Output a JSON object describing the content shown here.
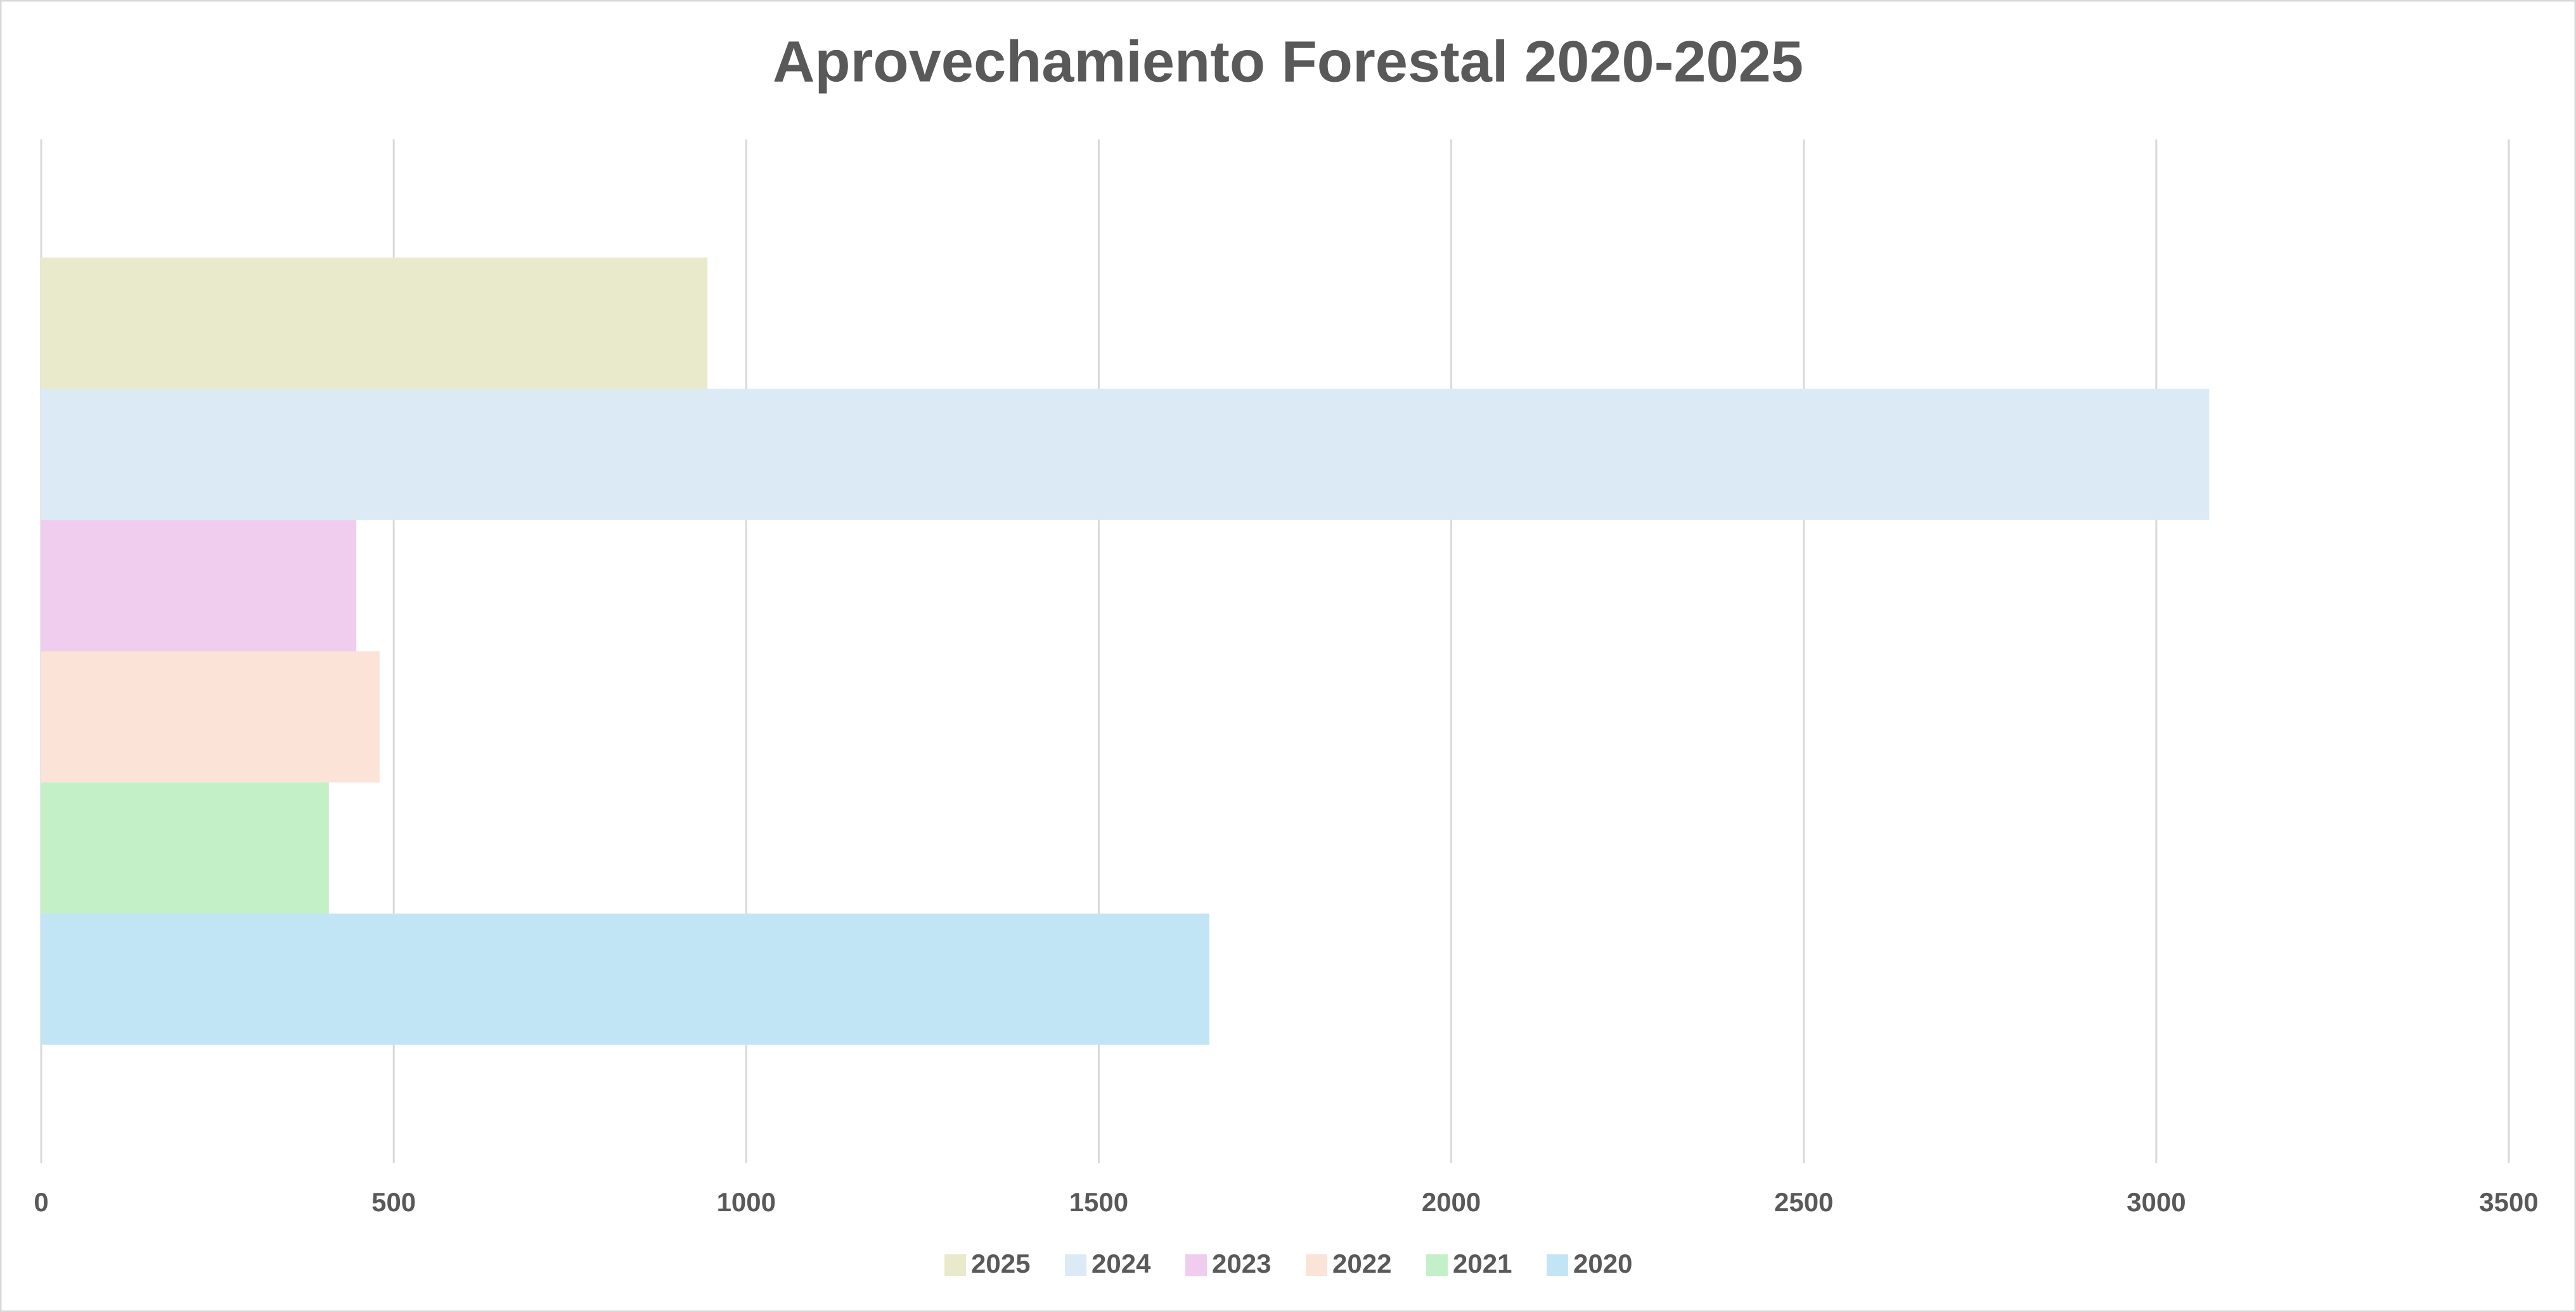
{
  "chart_data": {
    "type": "bar",
    "orientation": "horizontal",
    "title": "Aprovechamiento Forestal 2020-2025",
    "categories": [
      null
    ],
    "series": [
      {
        "name": "2025",
        "color": "#e8eacb",
        "values": [
          945
        ]
      },
      {
        "name": "2024",
        "color": "#dceaf6",
        "values": [
          3075
        ]
      },
      {
        "name": "2023",
        "color": "#f0cdee",
        "values": [
          447
        ]
      },
      {
        "name": "2022",
        "color": "#fce3d8",
        "values": [
          480
        ]
      },
      {
        "name": "2021",
        "color": "#c4f0c8",
        "values": [
          408
        ]
      },
      {
        "name": "2020",
        "color": "#c2e5f5",
        "values": [
          1657
        ]
      }
    ],
    "xlim": [
      0,
      3500
    ],
    "xticks": [
      0,
      500,
      1000,
      1500,
      2000,
      2500,
      3000,
      3500
    ],
    "grid": true,
    "legend": "bottom"
  }
}
